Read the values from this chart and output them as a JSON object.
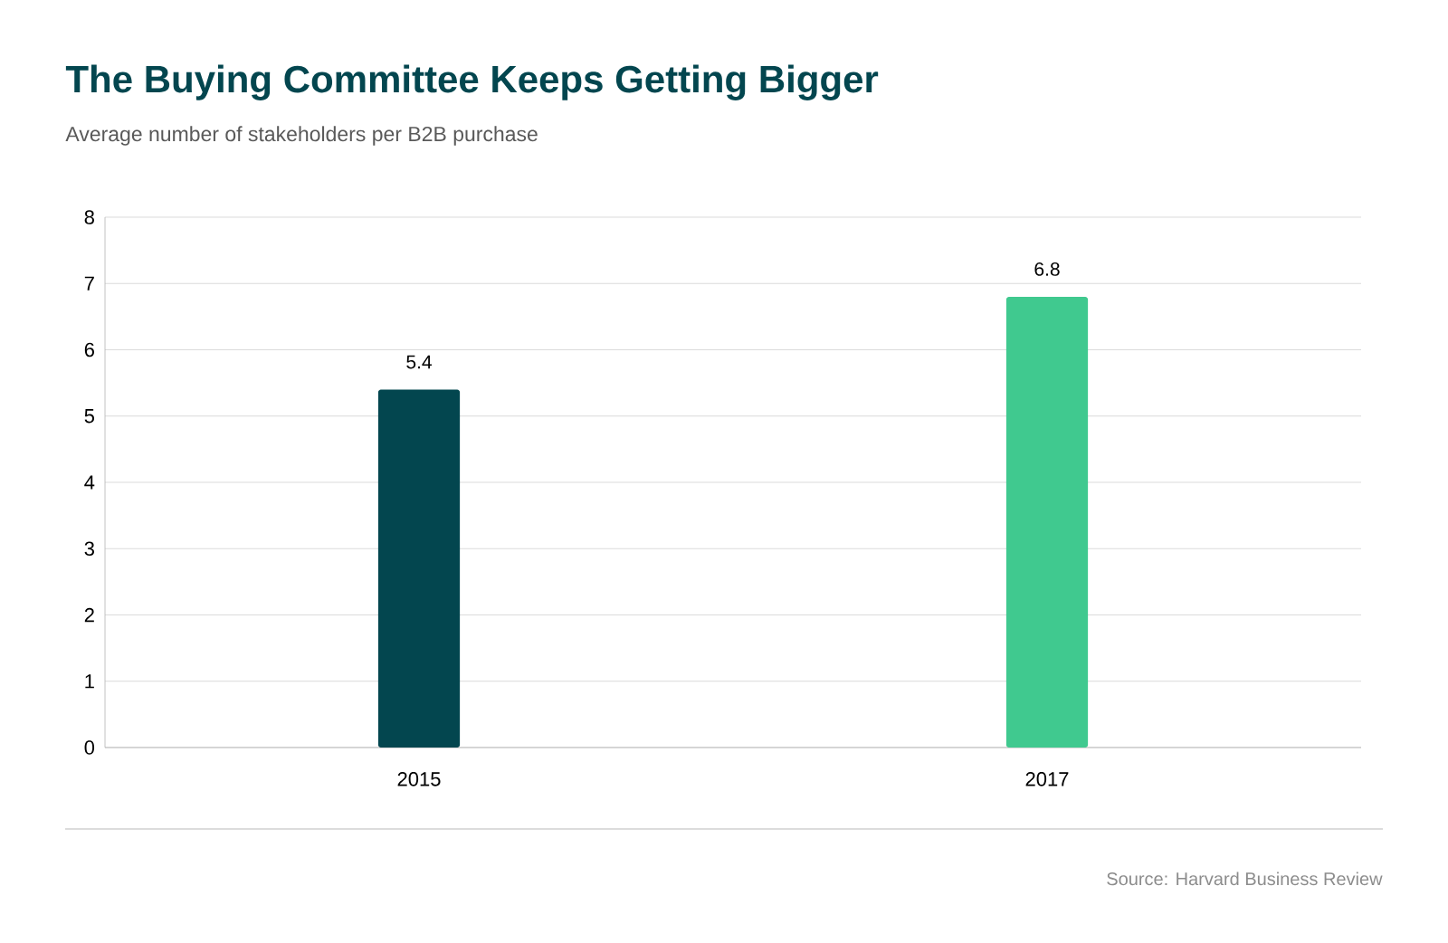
{
  "chart_data": {
    "type": "bar",
    "title": "The Buying Committee Keeps Getting Bigger",
    "subtitle": "Average number of stakeholders per B2B purchase",
    "categories": [
      "2015",
      "2017"
    ],
    "values": [
      5.4,
      6.8
    ],
    "colors": [
      "#03464f",
      "#40c98f"
    ],
    "ylim": [
      0,
      8
    ],
    "yticks": [
      0,
      1,
      2,
      3,
      4,
      5,
      6,
      7,
      8
    ],
    "grid": "y",
    "data_labels": true,
    "annotations": [
      "Source: Harvard Business Review"
    ]
  }
}
